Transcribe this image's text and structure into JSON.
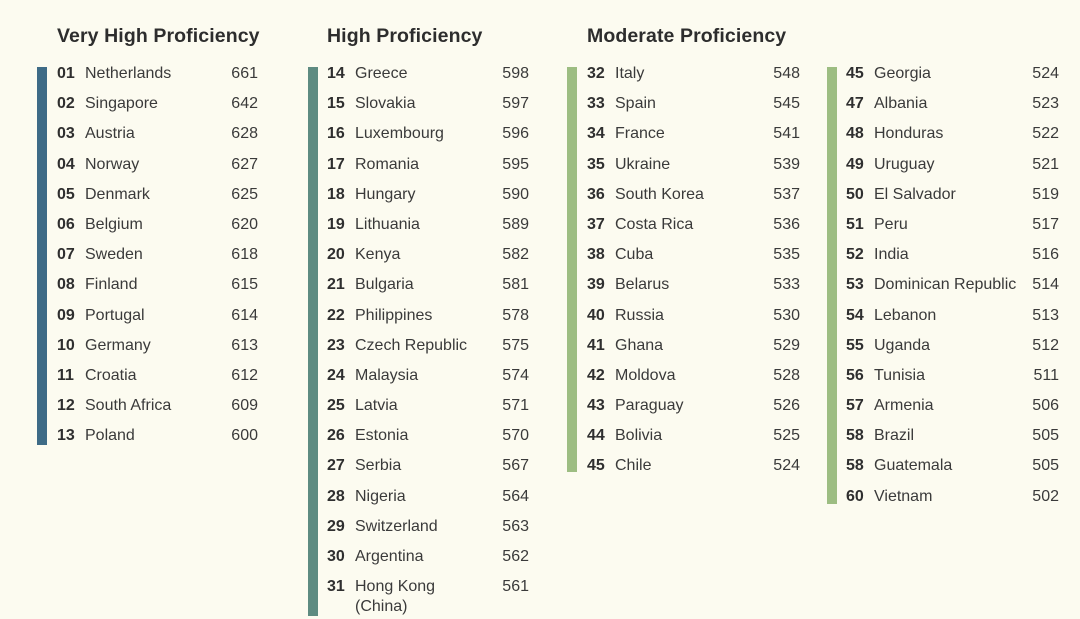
{
  "colors": {
    "background": "#fcfbf0",
    "very_high": "#3e6b86",
    "high": "#5e8b81",
    "moderate": "#9dbd82"
  },
  "columns": [
    {
      "heading": "Very High Proficiency",
      "rows": [
        {
          "rank": "01",
          "country": "Netherlands",
          "score": "661"
        },
        {
          "rank": "02",
          "country": "Singapore",
          "score": "642"
        },
        {
          "rank": "03",
          "country": "Austria",
          "score": "628"
        },
        {
          "rank": "04",
          "country": "Norway",
          "score": "627"
        },
        {
          "rank": "05",
          "country": "Denmark",
          "score": "625"
        },
        {
          "rank": "06",
          "country": "Belgium",
          "score": "620"
        },
        {
          "rank": "07",
          "country": "Sweden",
          "score": "618"
        },
        {
          "rank": "08",
          "country": "Finland",
          "score": "615"
        },
        {
          "rank": "09",
          "country": "Portugal",
          "score": "614"
        },
        {
          "rank": "10",
          "country": "Germany",
          "score": "613"
        },
        {
          "rank": "11",
          "country": "Croatia",
          "score": "612"
        },
        {
          "rank": "12",
          "country": "South Africa",
          "score": "609"
        },
        {
          "rank": "13",
          "country": "Poland",
          "score": "600"
        }
      ]
    },
    {
      "heading": "High Proficiency",
      "rows": [
        {
          "rank": "14",
          "country": "Greece",
          "score": "598"
        },
        {
          "rank": "15",
          "country": "Slovakia",
          "score": "597"
        },
        {
          "rank": "16",
          "country": "Luxembourg",
          "score": "596"
        },
        {
          "rank": "17",
          "country": "Romania",
          "score": "595"
        },
        {
          "rank": "18",
          "country": "Hungary",
          "score": "590"
        },
        {
          "rank": "19",
          "country": "Lithuania",
          "score": "589"
        },
        {
          "rank": "20",
          "country": "Kenya",
          "score": "582"
        },
        {
          "rank": "21",
          "country": "Bulgaria",
          "score": "581"
        },
        {
          "rank": "22",
          "country": "Philippines",
          "score": "578"
        },
        {
          "rank": "23",
          "country": "Czech Republic",
          "score": "575"
        },
        {
          "rank": "24",
          "country": "Malaysia",
          "score": "574"
        },
        {
          "rank": "25",
          "country": "Latvia",
          "score": "571"
        },
        {
          "rank": "26",
          "country": "Estonia",
          "score": "570"
        },
        {
          "rank": "27",
          "country": "Serbia",
          "score": "567"
        },
        {
          "rank": "28",
          "country": "Nigeria",
          "score": "564"
        },
        {
          "rank": "29",
          "country": "Switzerland",
          "score": "563"
        },
        {
          "rank": "30",
          "country": "Argentina",
          "score": "562"
        },
        {
          "rank": "31",
          "country": "Hong Kong (China)",
          "score": "561"
        }
      ]
    },
    {
      "heading": "Moderate Proficiency",
      "rows": [
        {
          "rank": "32",
          "country": "Italy",
          "score": "548"
        },
        {
          "rank": "33",
          "country": "Spain",
          "score": "545"
        },
        {
          "rank": "34",
          "country": "France",
          "score": "541"
        },
        {
          "rank": "35",
          "country": "Ukraine",
          "score": "539"
        },
        {
          "rank": "36",
          "country": "South Korea",
          "score": "537"
        },
        {
          "rank": "37",
          "country": "Costa Rica",
          "score": "536"
        },
        {
          "rank": "38",
          "country": "Cuba",
          "score": "535"
        },
        {
          "rank": "39",
          "country": "Belarus",
          "score": "533"
        },
        {
          "rank": "40",
          "country": "Russia",
          "score": "530"
        },
        {
          "rank": "41",
          "country": "Ghana",
          "score": "529"
        },
        {
          "rank": "42",
          "country": "Moldova",
          "score": "528"
        },
        {
          "rank": "43",
          "country": "Paraguay",
          "score": "526"
        },
        {
          "rank": "44",
          "country": "Bolivia",
          "score": "525"
        },
        {
          "rank": "45",
          "country": "Chile",
          "score": "524"
        }
      ]
    },
    {
      "heading": "",
      "rows": [
        {
          "rank": "45",
          "country": "Georgia",
          "score": "524"
        },
        {
          "rank": "47",
          "country": "Albania",
          "score": "523"
        },
        {
          "rank": "48",
          "country": "Honduras",
          "score": "522"
        },
        {
          "rank": "49",
          "country": "Uruguay",
          "score": "521"
        },
        {
          "rank": "50",
          "country": "El Salvador",
          "score": "519"
        },
        {
          "rank": "51",
          "country": "Peru",
          "score": "517"
        },
        {
          "rank": "52",
          "country": "India",
          "score": "516"
        },
        {
          "rank": "53",
          "country": "Dominican Republic",
          "score": "514"
        },
        {
          "rank": "54",
          "country": "Lebanon",
          "score": "513"
        },
        {
          "rank": "55",
          "country": "Uganda",
          "score": "512"
        },
        {
          "rank": "56",
          "country": "Tunisia",
          "score": "511"
        },
        {
          "rank": "57",
          "country": "Armenia",
          "score": "506"
        },
        {
          "rank": "58",
          "country": "Brazil",
          "score": "505"
        },
        {
          "rank": "58",
          "country": "Guatemala",
          "score": "505"
        },
        {
          "rank": "60",
          "country": "Vietnam",
          "score": "502"
        }
      ]
    }
  ]
}
